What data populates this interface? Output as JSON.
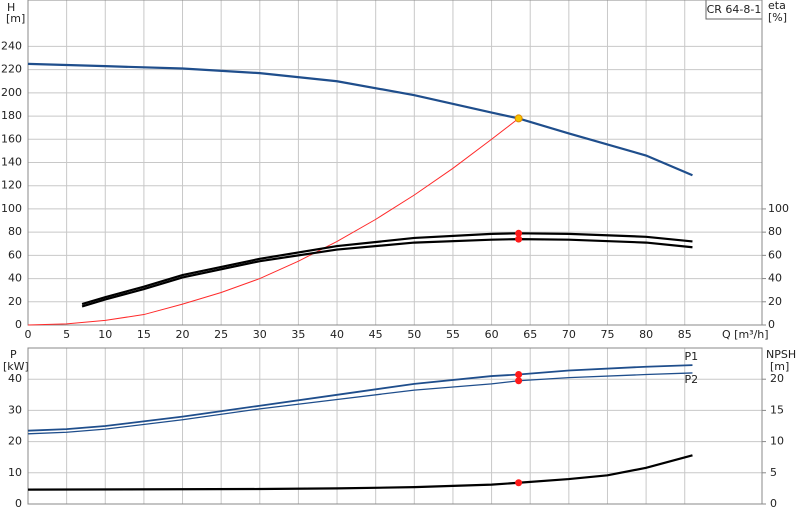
{
  "chart_data": [
    {
      "type": "line",
      "name": "CR 64-8-1",
      "ylabel": "H",
      "yunit": "[m]",
      "y2label": "eta",
      "y2unit": "[%]",
      "xlabel": "Q [m³/h]",
      "xlim": [
        0,
        95
      ],
      "xticks": [
        0,
        5,
        10,
        15,
        20,
        25,
        30,
        35,
        40,
        45,
        50,
        55,
        60,
        65,
        70,
        75,
        80,
        85
      ],
      "ylim": [
        0,
        280
      ],
      "yticks": [
        0,
        20,
        40,
        60,
        80,
        100,
        120,
        140,
        160,
        180,
        200,
        220,
        240
      ],
      "y2lim": [
        0,
        280
      ],
      "y2ticks": [
        0,
        20,
        40,
        60,
        80,
        100
      ],
      "grid": true,
      "series": [
        {
          "color": "#1f4e8c",
          "width": 2.2,
          "x": [
            0,
            10,
            20,
            30,
            40,
            50,
            60,
            63.5,
            70,
            80,
            86
          ],
          "values": [
            225,
            223,
            221,
            217,
            210,
            198,
            183,
            178,
            165,
            146,
            129
          ]
        },
        {
          "color": "#ff2a2a",
          "width": 1,
          "x": [
            0,
            5,
            10,
            15,
            20,
            25,
            30,
            35,
            40,
            45,
            50,
            55,
            60,
            63.5
          ],
          "values": [
            0,
            1,
            4,
            9,
            18,
            28,
            40,
            55,
            72,
            91,
            112,
            135,
            160,
            178
          ]
        },
        {
          "color": "#000000",
          "width": 2.2,
          "axis": "y2",
          "x": [
            7,
            10,
            15,
            20,
            30,
            40,
            50,
            60,
            63.5,
            70,
            80,
            86
          ],
          "values": [
            18,
            24,
            33,
            43,
            57,
            68,
            75,
            78.5,
            79,
            78.5,
            76,
            72
          ]
        },
        {
          "color": "#000000",
          "width": 2.2,
          "axis": "y2",
          "x": [
            7,
            10,
            15,
            20,
            30,
            40,
            50,
            60,
            63.5,
            70,
            80,
            86
          ],
          "values": [
            16,
            22,
            31,
            41,
            55,
            65,
            71,
            73.5,
            74,
            73.5,
            71,
            67
          ]
        }
      ],
      "markers": [
        {
          "x": 63.5,
          "y": 178,
          "color": "#f5c400"
        },
        {
          "x": 63.5,
          "y": 79,
          "color": "#ff1a1a",
          "axis": "y2"
        },
        {
          "x": 63.5,
          "y": 74,
          "color": "#ff1a1a",
          "axis": "y2"
        }
      ]
    },
    {
      "type": "line",
      "ylabel": "P",
      "yunit": "[kW]",
      "y2label": "NPSH",
      "y2unit": "[m]",
      "xlim": [
        0,
        95
      ],
      "ylim": [
        0,
        50
      ],
      "yticks": [
        0,
        10,
        20,
        30,
        40
      ],
      "y2lim": [
        0,
        25
      ],
      "y2ticks": [
        0,
        5,
        10,
        15,
        20
      ],
      "grid": true,
      "series": [
        {
          "name": "P1",
          "color": "#1f4e8c",
          "width": 1.8,
          "x": [
            0,
            5,
            10,
            20,
            30,
            40,
            50,
            60,
            63.5,
            70,
            80,
            86
          ],
          "values": [
            23.5,
            24,
            25,
            28,
            31.5,
            35,
            38.5,
            41,
            41.5,
            42.8,
            44,
            44.5
          ]
        },
        {
          "name": "P2",
          "color": "#1f4e8c",
          "width": 1.3,
          "x": [
            0,
            5,
            10,
            20,
            30,
            40,
            50,
            60,
            63.5,
            70,
            80,
            86
          ],
          "values": [
            22.5,
            23,
            24,
            27,
            30.5,
            33.5,
            36.5,
            38.5,
            39.5,
            40.5,
            41.5,
            42
          ]
        },
        {
          "color": "#000000",
          "width": 2.2,
          "axis": "y2",
          "x": [
            0,
            30,
            40,
            50,
            60,
            63.5,
            70,
            75,
            80,
            86
          ],
          "values": [
            2.3,
            2.4,
            2.5,
            2.7,
            3.1,
            3.4,
            4,
            4.6,
            5.8,
            7.8
          ]
        }
      ],
      "markers": [
        {
          "x": 63.5,
          "y": 41.5,
          "color": "#ff1a1a"
        },
        {
          "x": 63.5,
          "y": 39.5,
          "color": "#ff1a1a"
        },
        {
          "x": 63.5,
          "y": 3.4,
          "color": "#ff1a1a",
          "axis": "y2"
        }
      ]
    }
  ]
}
